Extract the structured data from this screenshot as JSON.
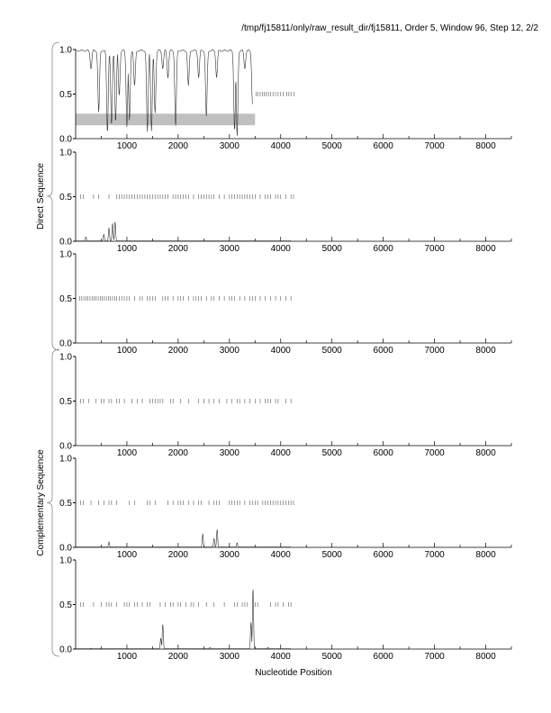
{
  "title": "/tmp/fj15811/only/raw_result_dir/fj15811, Order 5, Window 96, Step 12, 2/2",
  "chart_data": {
    "type": "line",
    "xlabel": "Nucleotide Position",
    "group_labels": [
      "Direct Sequence",
      "Complementary Sequence"
    ],
    "xlim": [
      0,
      8500
    ],
    "ylim": [
      0,
      1
    ],
    "xticks": [
      1000,
      2000,
      3000,
      4000,
      5000,
      6000,
      7000,
      8000
    ],
    "yticks": [
      "0.0",
      "0.5",
      "1.0"
    ],
    "highlight_band": {
      "panel": 1,
      "x": [
        0,
        3500
      ],
      "y": [
        0.15,
        0.28
      ],
      "color": "#c0c0c0"
    },
    "panels": [
      {
        "name": "frame-1",
        "kind": "dips",
        "end": 3450,
        "dips": [
          [
            300,
            0.8
          ],
          [
            450,
            0.3
          ],
          [
            620,
            0.08
          ],
          [
            700,
            0.15
          ],
          [
            780,
            0.2
          ],
          [
            850,
            0.5
          ],
          [
            1000,
            0.15
          ],
          [
            1050,
            0.2
          ],
          [
            1150,
            0.6
          ],
          [
            1400,
            0.08
          ],
          [
            1480,
            0.1
          ],
          [
            1550,
            0.3
          ],
          [
            1700,
            0.8
          ],
          [
            1800,
            0.7
          ],
          [
            1950,
            0.15
          ],
          [
            2200,
            0.6
          ],
          [
            2400,
            0.7
          ],
          [
            2550,
            0.25
          ],
          [
            2750,
            0.7
          ],
          [
            3100,
            0.1
          ],
          [
            3150,
            0.03
          ],
          [
            3300,
            0.8
          ],
          [
            3450,
            0.4
          ]
        ],
        "stops": [
          3520,
          3560,
          3600,
          3640,
          3680,
          3720,
          3760,
          3800,
          3850,
          3900,
          3950,
          4000,
          4050,
          4120,
          4160,
          4200,
          4260
        ]
      },
      {
        "name": "frame-2",
        "kind": "peaks",
        "peaks": [
          [
            200,
            0.05
          ],
          [
            550,
            0.08
          ],
          [
            650,
            0.15
          ],
          [
            720,
            0.2
          ],
          [
            770,
            0.22
          ]
        ],
        "stops": [
          100,
          150,
          350,
          450,
          650,
          800,
          850,
          900,
          950,
          1000,
          1050,
          1100,
          1150,
          1200,
          1250,
          1300,
          1350,
          1400,
          1450,
          1500,
          1550,
          1600,
          1650,
          1700,
          1750,
          1800,
          1900,
          1950,
          2000,
          2050,
          2100,
          2150,
          2200,
          2300,
          2400,
          2450,
          2500,
          2550,
          2600,
          2650,
          2700,
          2800,
          2900,
          3000,
          3050,
          3100,
          3150,
          3200,
          3250,
          3300,
          3350,
          3400,
          3450,
          3500,
          3600,
          3700,
          3750,
          3800,
          3900,
          3950,
          4000,
          4100,
          4200,
          4250
        ]
      },
      {
        "name": "frame-3",
        "kind": "peaks",
        "peaks": [],
        "stops": [
          80,
          120,
          160,
          200,
          240,
          280,
          320,
          360,
          400,
          440,
          480,
          520,
          560,
          600,
          640,
          680,
          720,
          760,
          800,
          850,
          900,
          950,
          1000,
          1050,
          1150,
          1250,
          1300,
          1400,
          1450,
          1500,
          1550,
          1700,
          1750,
          1800,
          1900,
          2000,
          2050,
          2100,
          2200,
          2300,
          2350,
          2400,
          2450,
          2550,
          2650,
          2700,
          2800,
          2900,
          3000,
          3050,
          3100,
          3200,
          3300,
          3400,
          3450,
          3500,
          3600,
          3700,
          3800,
          3900,
          4000,
          4100,
          4200
        ]
      },
      {
        "name": "frame-4",
        "kind": "peaks",
        "peaks": [],
        "stops": [
          100,
          150,
          250,
          400,
          500,
          550,
          650,
          700,
          800,
          850,
          950,
          1100,
          1200,
          1300,
          1450,
          1500,
          1550,
          1600,
          1650,
          1700,
          1850,
          1900,
          2050,
          2200,
          2400,
          2500,
          2600,
          2700,
          2800,
          2950,
          3050,
          3150,
          3200,
          3300,
          3400,
          3500,
          3600,
          3700,
          3750,
          3800,
          3900,
          3950,
          4100,
          4200
        ]
      },
      {
        "name": "frame-5",
        "kind": "peaks",
        "peaks": [
          [
            650,
            0.06
          ],
          [
            2480,
            0.15
          ],
          [
            2700,
            0.1
          ],
          [
            2760,
            0.2
          ],
          [
            3150,
            0.05
          ]
        ],
        "stops": [
          100,
          150,
          300,
          450,
          550,
          650,
          700,
          800,
          1050,
          1150,
          1400,
          1450,
          1550,
          1800,
          1900,
          2000,
          2050,
          2100,
          2200,
          2300,
          2400,
          2450,
          2600,
          2700,
          2750,
          2800,
          3000,
          3050,
          3100,
          3150,
          3200,
          3300,
          3400,
          3450,
          3500,
          3550,
          3650,
          3700,
          3750,
          3800,
          3850,
          3900,
          3950,
          4000,
          4050,
          4100,
          4150,
          4200,
          4250
        ]
      },
      {
        "name": "frame-6",
        "kind": "peaks",
        "peaks": [
          [
            300,
            0.01
          ],
          [
            1660,
            0.12
          ],
          [
            1700,
            0.28
          ],
          [
            2620,
            0.02
          ],
          [
            3420,
            0.3
          ],
          [
            3460,
            0.68
          ],
          [
            3750,
            0.02
          ]
        ],
        "stops": [
          100,
          150,
          350,
          500,
          600,
          650,
          700,
          800,
          950,
          1000,
          1050,
          1150,
          1200,
          1300,
          1400,
          1450,
          1650,
          1750,
          1850,
          1900,
          2000,
          2050,
          2150,
          2250,
          2300,
          2400,
          2550,
          2700,
          2900,
          3100,
          3150,
          3250,
          3300,
          3350,
          3500,
          3550,
          3800,
          3900,
          3950,
          4050,
          4150,
          4200
        ]
      }
    ]
  }
}
